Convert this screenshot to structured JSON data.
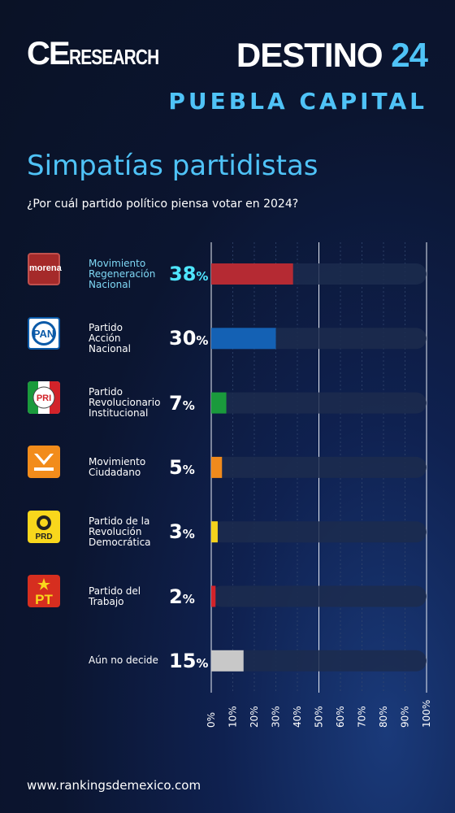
{
  "header": {
    "brand_left_a": "CE",
    "brand_left_b": "RESEARCH",
    "brand_right_word": "DESTINO",
    "brand_right_num": "24",
    "region": "PUEBLA CAPITAL"
  },
  "title": "Simpatías partidistas",
  "subtitle": "¿Por cuál partido político piensa votar en 2024?",
  "footer": "www.rankingsdemexico.com",
  "logos": {
    "morena": "morena",
    "pan": "PAN",
    "pri": "PRI",
    "prd": "PRD",
    "pt": "PT"
  },
  "chart_data": {
    "type": "bar",
    "orientation": "horizontal",
    "categories": [
      "Movimiento Regeneración Nacional",
      "Partido Acción Nacional",
      "Partido Revolucionario Institucional",
      "Movimiento Ciudadano",
      "Partido de la Revolución Democrática",
      "Partido del Trabajo",
      "Aún no decide"
    ],
    "category_lines": [
      [
        "Movimiento",
        "Regeneración",
        "Nacional"
      ],
      [
        "Partido",
        "Acción",
        "Nacional"
      ],
      [
        "Partido",
        "Revolucionario",
        "Institucional"
      ],
      [
        "Movimiento",
        "Ciudadano"
      ],
      [
        "Partido de la",
        "Revolución",
        "Democrática"
      ],
      [
        "Partido del",
        "Trabajo"
      ],
      [
        "Aún no decide"
      ]
    ],
    "values": [
      38,
      30,
      7,
      5,
      3,
      2,
      15
    ],
    "value_labels": [
      "38",
      "30",
      "7",
      "5",
      "3",
      "2",
      "15"
    ],
    "unit": "%",
    "colors": [
      "#b52a33",
      "#1461b4",
      "#1a9a3c",
      "#f08a1c",
      "#f4d21c",
      "#d2232a",
      "#c8c8c8"
    ],
    "highlight_index": 0,
    "xlim": [
      0,
      100
    ],
    "xticks": [
      "0%",
      "10%",
      "20%",
      "30%",
      "40%",
      "50%",
      "60%",
      "70%",
      "80%",
      "90%",
      "100%"
    ],
    "grid_major": [
      0,
      50,
      100
    ]
  }
}
